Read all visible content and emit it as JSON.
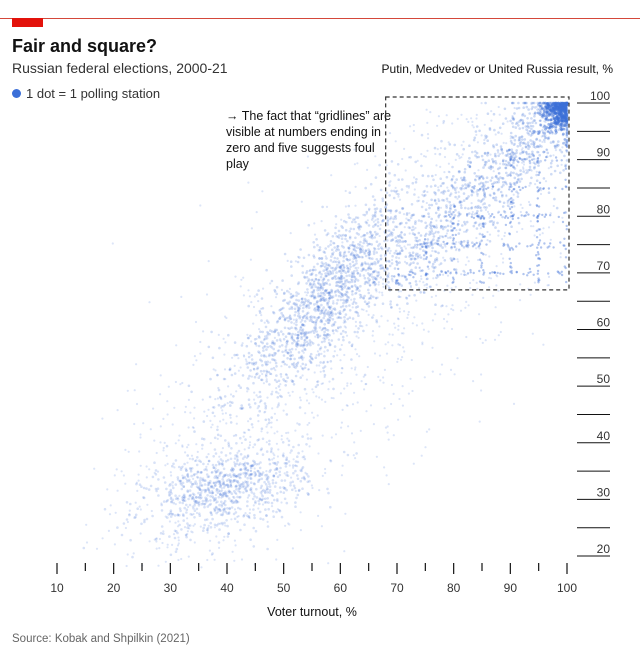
{
  "title": "Fair and square?",
  "subtitle": "Russian federal elections, 2000-21",
  "legend_label": "1 dot = 1 polling station",
  "annotation": "→ The fact that “gridlines” are visible at numbers ending in zero and five suggests foul play",
  "source": "Source: Kobak and Shpilkin (2021)",
  "colors": {
    "dots": "#3b6fd8",
    "accent": "#e3120b",
    "box": "#333333"
  },
  "chart_data": {
    "type": "scatter",
    "xlabel": "Voter turnout, %",
    "ylabel": "Putin, Medvedev or United Russia result, %",
    "xlim": [
      10,
      100
    ],
    "ylim": [
      20,
      100
    ],
    "xticks": [
      10,
      20,
      30,
      40,
      50,
      60,
      70,
      80,
      90,
      100
    ],
    "yticks": [
      20,
      30,
      40,
      50,
      60,
      70,
      80,
      90,
      100
    ],
    "highlight_box": {
      "x": [
        68,
        100
      ],
      "y": [
        67,
        100
      ]
    },
    "clusters": [
      {
        "center_x": 58,
        "center_y": 66
      },
      {
        "center_x": 40,
        "center_y": 32
      },
      {
        "center_x": 98,
        "center_y": 97
      }
    ]
  }
}
